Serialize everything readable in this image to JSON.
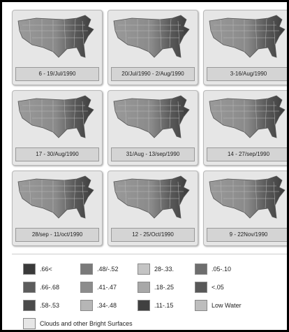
{
  "panels": [
    "6 - 19/Jul/1990",
    "20/Jul/1990 - 2/Aug/1990",
    "3-16/Aug/1990",
    "17 - 30/Aug/1990",
    "31/Aug - 13/sep/1990",
    "14 - 27/sep/1990",
    "28/sep - 11/oct/1990",
    "12 - 25/Oct/1990",
    "9 - 22Nov/1990"
  ],
  "legend": {
    "items": [
      {
        "label": ".66<",
        "color": "#3a3a3a"
      },
      {
        "label": ".48/-.52",
        "color": "#7a7a7a"
      },
      {
        "label": "28-.33.",
        "color": "#c4c4c4"
      },
      {
        "label": ".05-.10",
        "color": "#6e6e6e"
      },
      {
        "label": ".66-.68",
        "color": "#5c5c5c"
      },
      {
        "label": ".41-.47",
        "color": "#8c8c8c"
      },
      {
        "label": ".18-.25",
        "color": "#a8a8a8"
      },
      {
        "label": "<.05",
        "color": "#585858"
      },
      {
        "label": ".58-.53",
        "color": "#4a4a4a"
      },
      {
        "label": ".34-.48",
        "color": "#b6b6b6"
      },
      {
        "label": ".11-.15",
        "color": "#404040"
      },
      {
        "label": "Low Water",
        "color": "#bdbdbd"
      }
    ],
    "wide_item": {
      "label": "Clouds and other Bright Surfaces",
      "color": "#e6e6e6"
    }
  }
}
